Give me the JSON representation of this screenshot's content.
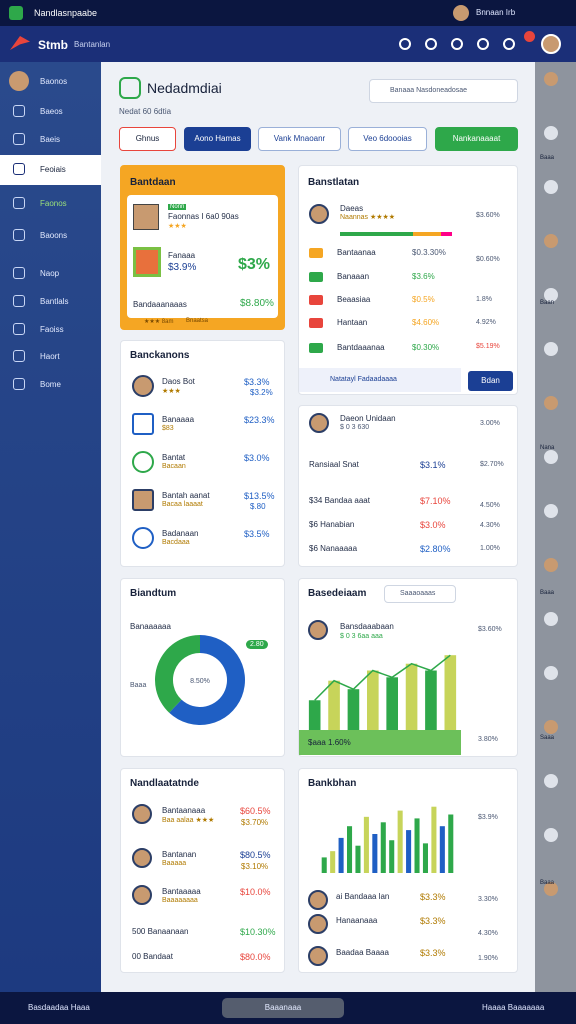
{
  "top_bar": {
    "title": "Nandlasnpaabe",
    "user": "Bnnaan Irb"
  },
  "app_bar": {
    "brand": "Stmb",
    "subtitle": "Bantanlan"
  },
  "sidebar": [
    "Baonos",
    "Baeos",
    "Baeis",
    "Feoiais",
    "Faonos",
    "Baoons",
    "Naop",
    "Bantlals",
    "Faoiss",
    "Haort",
    "Bome"
  ],
  "header": {
    "title": "Nedadmdiai",
    "subtitle": "Nedat 60 6dtia",
    "search": "Banaaa Nasdoneadosae"
  },
  "filters": [
    "Ghnus",
    "Aono Hamas",
    "Vank Mnaoanr",
    "Veo 6doooias",
    "Nankanaaaat"
  ],
  "card1": {
    "title": "Bantdaan",
    "badge": "Nonn",
    "name": "Faonnas I 6a0 90as",
    "rating": "★★★",
    "label": "Fanaaa",
    "value": "$3.9%",
    "big": "$3%",
    "footer_label": "Bandaaanaaas",
    "footer_value": "$8.80%",
    "tags": [
      "★★★ 8am",
      "Bnaatsa"
    ]
  },
  "card2": {
    "title": "Banstlatan",
    "head_name": "Daeas",
    "head_sub": "Naannas ★★★★",
    "rows": [
      {
        "label": "Bantaanaa",
        "value": "$0.3.30%"
      },
      {
        "label": "Banaaan",
        "value": "$3.6%"
      },
      {
        "label": "Beaasiaa",
        "value": "$0.5%"
      },
      {
        "label": "Hantaan",
        "value": "$4.60%"
      },
      {
        "label": "Bantdaaanaa",
        "value": "$0.30%"
      }
    ],
    "note": "Natatayl Fadaadaaaa",
    "button": "Bdan",
    "side": [
      "$3.60%",
      "$0.60%",
      "1.8%",
      "4.92%",
      "$5.19%"
    ]
  },
  "card3": {
    "title": "Banckanons",
    "rows": [
      {
        "label": "Daos Bot",
        "sub": "★★★",
        "value": "$3.3%",
        "value2": "$3.2%"
      },
      {
        "label": "Banaaaa",
        "sub": "$83",
        "value": "$23.3%"
      },
      {
        "label": "Bantat",
        "sub": "Bacaan",
        "value": "$3.0%"
      },
      {
        "label": "Bantah aanat",
        "sub": "Bacaa laaaat",
        "value": "$13.5%",
        "value2": "$.80"
      },
      {
        "label": "Badanaan",
        "sub": "Bacdaaa",
        "value": "$3.5%"
      }
    ]
  },
  "card4": {
    "title": "Daeon Unidaan",
    "sub": "$ 0 3 630",
    "rows": [
      {
        "label": "Ransiaal Snat",
        "value": "$3.1%"
      },
      {
        "label": "$34 Bandaa aaat",
        "value": "$7.10%"
      },
      {
        "label": "$6 Hanabian",
        "value": "$3.0%"
      },
      {
        "label": "$6 Nanaaaaa",
        "value": "$2.80%"
      }
    ],
    "side": [
      "3.00%",
      "$2.70%",
      "4.50%",
      "4.30%",
      "1.00%"
    ]
  },
  "card5": {
    "title": "Biandtum",
    "subtitle": "Banaaaaaa"
  },
  "card6": {
    "title": "Basedeiaam",
    "search": "Saaaoaaas",
    "name": "Bansdaaabaan",
    "sub": "$ 0 3 6aa aaa",
    "footer": "$aaa 1.60%",
    "side": [
      "$3.60%",
      "3.80%"
    ]
  },
  "card7": {
    "title": "Nandlaatatnde",
    "rows": [
      {
        "label": "Bantaanaaa",
        "sub": "Baa aalaa ★★★",
        "value": "$60.5%",
        "value2": "$3.70%"
      },
      {
        "label": "Bantanan",
        "sub": "Baaaaa",
        "value": "$80.5%",
        "value2": "$3.10%"
      },
      {
        "label": "Bantaaaaa",
        "sub": "Baaaaaaaa",
        "value": "$10.0%"
      },
      {
        "label": "500 Banaanaan",
        "value": "$10.30%"
      },
      {
        "label": "00 Bandaat",
        "value": "$80.0%"
      }
    ]
  },
  "card8": {
    "title": "Bankbhan",
    "rows": [
      {
        "label": "ai Bandaaa lan",
        "value": "$3.3%"
      },
      {
        "label": "Hanaanaaa",
        "value": "$3.3%"
      },
      {
        "label": "Baadaa Baaaa",
        "value": "$3.3%"
      }
    ],
    "side": [
      "$3.9%",
      "3.30%",
      "4.30%",
      "1.90%"
    ]
  },
  "right_rail": [
    "Baaa",
    "Baan",
    "Nana",
    "Baaa",
    "Saaa",
    "Baaa"
  ],
  "bottom_bar": {
    "left": "Basdaadaa Haaa",
    "center": "Baaanaaa",
    "right": "Haaaa Baaaaaaa"
  },
  "chart_data": [
    {
      "type": "pie",
      "center_label": "8.50%",
      "badge": "2.80",
      "legend_label": "Baaa",
      "series": [
        {
          "name": "A",
          "color": "#1f5fc4",
          "values": [
            62
          ]
        },
        {
          "name": "B",
          "color": "#2ea84a",
          "values": [
            38
          ]
        }
      ]
    },
    {
      "type": "bar",
      "ylim": [
        0,
        100
      ],
      "values": [
        35,
        58,
        48,
        70,
        62,
        78,
        70,
        88
      ],
      "colors": [
        "#2ea84a",
        "#c7d45a"
      ]
    },
    {
      "type": "bar",
      "ylim": [
        0,
        100
      ],
      "values": [
        20,
        28,
        45,
        60,
        35,
        72,
        50,
        65,
        42,
        80,
        55,
        70,
        38,
        85,
        60,
        75
      ],
      "colors": [
        "#2ea84a",
        "#c7d45a",
        "#1f5fc4",
        "#2ea84a"
      ]
    }
  ]
}
